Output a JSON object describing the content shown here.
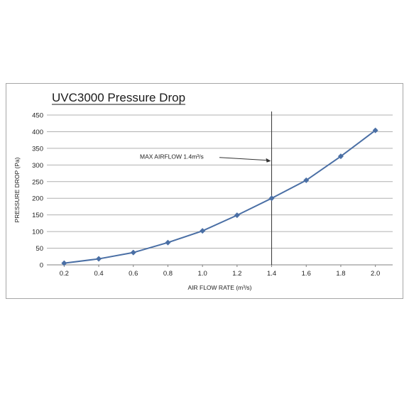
{
  "chart_data": {
    "type": "line",
    "title": "UVC3000 Pressure Drop",
    "xlabel": "AIR FLOW RATE (m³/s)",
    "ylabel": "PRESSURE DROP (Pa)",
    "xlim": [
      0.1,
      2.1
    ],
    "ylim": [
      0,
      450
    ],
    "categories": [
      "0.2",
      "0.4",
      "0.6",
      "0.8",
      "1.0",
      "1.2",
      "1.4",
      "1.6",
      "1.8",
      "2.0"
    ],
    "x": [
      0.2,
      0.4,
      0.6,
      0.8,
      1.0,
      1.2,
      1.4,
      1.6,
      1.8,
      2.0
    ],
    "yticks": [
      0,
      50,
      100,
      150,
      200,
      250,
      300,
      350,
      400,
      450
    ],
    "series": [
      {
        "values": [
          5,
          18,
          37,
          67,
          102,
          149,
          200,
          254,
          326,
          404
        ],
        "color": "#4a6fa5",
        "marker": "diamond"
      }
    ],
    "grid": true,
    "annotation": {
      "text": "MAX AIRFLOW 1.4m³/s",
      "x": 1.4,
      "y": 312
    },
    "reference_line_x": 1.4
  }
}
